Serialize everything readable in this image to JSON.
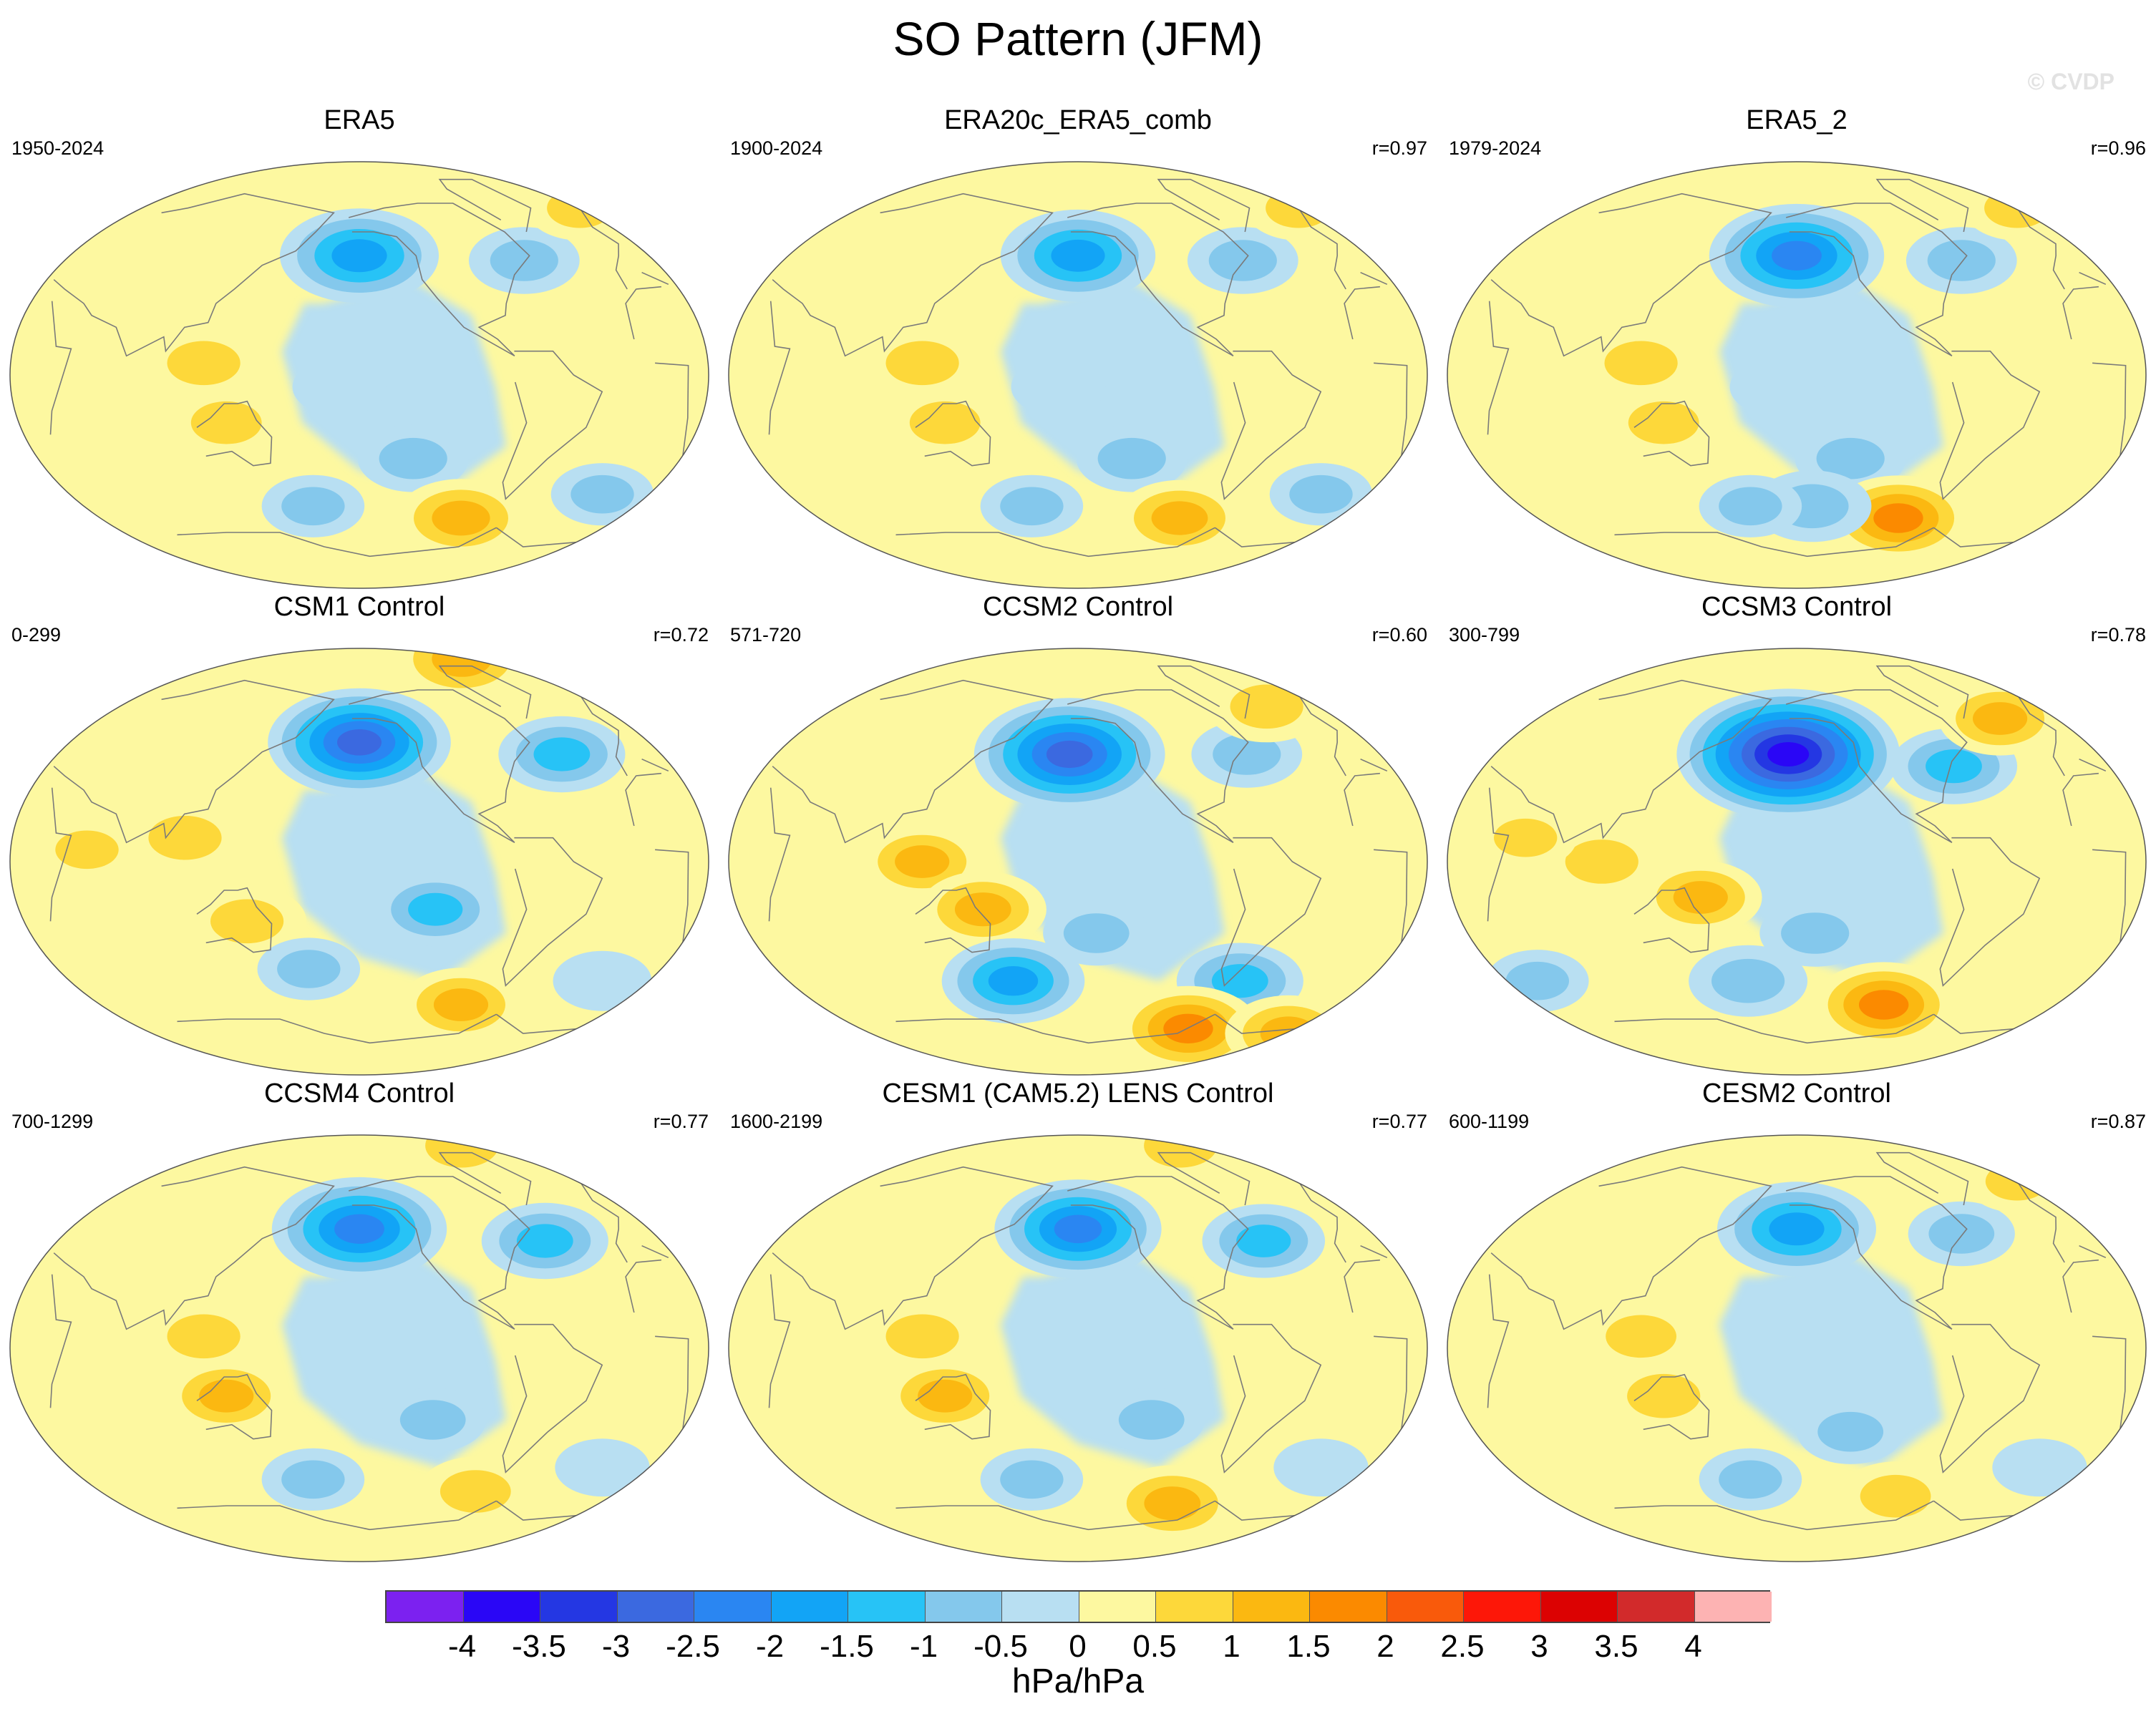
{
  "figure": {
    "title": "SO Pattern (JFM)",
    "credit": "© CVDP",
    "units": "hPa/hPa"
  },
  "colorbar": {
    "colors": [
      "#7c21f0",
      "#2a06f6",
      "#2437e3",
      "#3b69e0",
      "#2a86f2",
      "#12a4f6",
      "#27c3f6",
      "#84c8ec",
      "#b8dff2",
      "#fdf8a0",
      "#fdd83a",
      "#fbb811",
      "#fb8a00",
      "#f95a0b",
      "#fd1708",
      "#dc0202",
      "#d22a2b",
      "#fdb3b3"
    ],
    "labels": [
      "-4",
      "-3.5",
      "-3",
      "-2.5",
      "-2",
      "-1.5",
      "-1",
      "-0.5",
      "0",
      "0.5",
      "1",
      "1.5",
      "2",
      "2.5",
      "3",
      "3.5",
      "4"
    ]
  },
  "panels": [
    {
      "title": "ERA5",
      "years": "1950-2024",
      "corr": "",
      "features": [
        {
          "lon": -160,
          "lat": 50,
          "v": -2.0
        },
        {
          "lon": -60,
          "lat": 48,
          "v": -0.8
        },
        {
          "lon": 120,
          "lat": 5,
          "v": 1.0
        },
        {
          "lon": 130,
          "lat": -20,
          "v": 0.9
        },
        {
          "lon": -130,
          "lat": -35,
          "v": -0.8
        },
        {
          "lon": -90,
          "lat": -60,
          "v": 1.3
        },
        {
          "lon": 20,
          "lat": 70,
          "v": 0.7
        },
        {
          "lon": -10,
          "lat": -50,
          "v": -0.6
        },
        {
          "lon": 170,
          "lat": -55,
          "v": -0.6
        },
        {
          "lon": 40,
          "lat": 25,
          "v": 0.4
        },
        {
          "lon": -170,
          "lat": -5,
          "v": -0.4
        }
      ]
    },
    {
      "title": "ERA20c_ERA5_comb",
      "years": "1900-2024",
      "corr": "r=0.97",
      "features": [
        {
          "lon": -160,
          "lat": 50,
          "v": -1.9
        },
        {
          "lon": -60,
          "lat": 48,
          "v": -0.8
        },
        {
          "lon": 120,
          "lat": 5,
          "v": 1.0
        },
        {
          "lon": 130,
          "lat": -20,
          "v": 0.9
        },
        {
          "lon": -130,
          "lat": -35,
          "v": -0.8
        },
        {
          "lon": -90,
          "lat": -60,
          "v": 1.2
        },
        {
          "lon": 20,
          "lat": 70,
          "v": 0.7
        },
        {
          "lon": -10,
          "lat": -50,
          "v": -0.6
        },
        {
          "lon": 170,
          "lat": -55,
          "v": -0.6
        },
        {
          "lon": 40,
          "lat": 25,
          "v": 0.4
        },
        {
          "lon": -170,
          "lat": -5,
          "v": -0.4
        }
      ]
    },
    {
      "title": "ERA5_2",
      "years": "1979-2024",
      "corr": "r=0.96",
      "features": [
        {
          "lon": -160,
          "lat": 50,
          "v": -2.4
        },
        {
          "lon": -60,
          "lat": 48,
          "v": -0.8
        },
        {
          "lon": 120,
          "lat": 5,
          "v": 1.0
        },
        {
          "lon": 130,
          "lat": -20,
          "v": 0.9
        },
        {
          "lon": -130,
          "lat": -35,
          "v": -0.8
        },
        {
          "lon": -90,
          "lat": -60,
          "v": 1.6
        },
        {
          "lon": 20,
          "lat": 70,
          "v": 0.7
        },
        {
          "lon": -150,
          "lat": -55,
          "v": -1.0
        },
        {
          "lon": 170,
          "lat": -55,
          "v": -0.6
        },
        {
          "lon": 40,
          "lat": 25,
          "v": 0.4
        },
        {
          "lon": -170,
          "lat": -5,
          "v": -0.4
        }
      ]
    },
    {
      "title": "CSM1 Control",
      "years": "0-299",
      "corr": "r=0.72",
      "features": [
        {
          "lon": -160,
          "lat": 50,
          "v": -2.6
        },
        {
          "lon": -40,
          "lat": 45,
          "v": -1.2
        },
        {
          "lon": 110,
          "lat": 10,
          "v": 1.0
        },
        {
          "lon": 140,
          "lat": -25,
          "v": 1.0
        },
        {
          "lon": -120,
          "lat": -20,
          "v": -1.1
        },
        {
          "lon": -90,
          "lat": -60,
          "v": 1.1
        },
        {
          "lon": 0,
          "lat": 85,
          "v": 1.4
        },
        {
          "lon": 170,
          "lat": -45,
          "v": -0.6
        },
        {
          "lon": 60,
          "lat": 5,
          "v": 0.6
        },
        {
          "lon": -10,
          "lat": -50,
          "v": -0.5
        }
      ]
    },
    {
      "title": "CCSM2 Control",
      "years": "571-720",
      "corr": "r=0.60",
      "features": [
        {
          "lon": -165,
          "lat": 45,
          "v": -2.8
        },
        {
          "lon": -60,
          "lat": 45,
          "v": -0.8
        },
        {
          "lon": 120,
          "lat": 0,
          "v": 1.1
        },
        {
          "lon": 150,
          "lat": -20,
          "v": 1.2
        },
        {
          "lon": 160,
          "lat": -50,
          "v": -1.6
        },
        {
          "lon": -60,
          "lat": -50,
          "v": -1.2
        },
        {
          "lon": -70,
          "lat": -70,
          "v": 1.6
        },
        {
          "lon": 20,
          "lat": -72,
          "v": 1.2
        },
        {
          "lon": -20,
          "lat": 65,
          "v": 1.0
        },
        {
          "lon": -150,
          "lat": -30,
          "v": -0.7
        },
        {
          "lon": 60,
          "lat": 20,
          "v": 0.5
        }
      ]
    },
    {
      "title": "CCSM3 Control",
      "years": "300-799",
      "corr": "r=0.78",
      "features": [
        {
          "lon": -165,
          "lat": 45,
          "v": -3.6
        },
        {
          "lon": -70,
          "lat": 40,
          "v": -1.2
        },
        {
          "lon": 100,
          "lat": 0,
          "v": 1.0
        },
        {
          "lon": 150,
          "lat": -15,
          "v": 1.1
        },
        {
          "lon": -100,
          "lat": -60,
          "v": 1.6
        },
        {
          "lon": -20,
          "lat": 60,
          "v": 1.1
        },
        {
          "lon": 170,
          "lat": -50,
          "v": -1.0
        },
        {
          "lon": -150,
          "lat": -30,
          "v": -0.8
        },
        {
          "lon": 40,
          "lat": -50,
          "v": -0.6
        },
        {
          "lon": 60,
          "lat": 10,
          "v": 0.6
        }
      ]
    },
    {
      "title": "CCSM4 Control",
      "years": "700-1299",
      "corr": "r=0.77",
      "features": [
        {
          "lon": -160,
          "lat": 50,
          "v": -2.4
        },
        {
          "lon": -50,
          "lat": 45,
          "v": -1.2
        },
        {
          "lon": 120,
          "lat": 5,
          "v": 1.0
        },
        {
          "lon": 130,
          "lat": -20,
          "v": 1.1
        },
        {
          "lon": -120,
          "lat": -30,
          "v": -0.7
        },
        {
          "lon": -80,
          "lat": -60,
          "v": 0.9
        },
        {
          "lon": 0,
          "lat": 85,
          "v": 1.0
        },
        {
          "lon": 170,
          "lat": -55,
          "v": -0.6
        },
        {
          "lon": -10,
          "lat": -50,
          "v": -0.4
        }
      ]
    },
    {
      "title": "CESM1 (CAM5.2) LENS Control",
      "years": "1600-2199",
      "corr": "r=0.77",
      "features": [
        {
          "lon": -160,
          "lat": 50,
          "v": -2.2
        },
        {
          "lon": -50,
          "lat": 45,
          "v": -1.1
        },
        {
          "lon": 120,
          "lat": 5,
          "v": 1.0
        },
        {
          "lon": 130,
          "lat": -20,
          "v": 1.1
        },
        {
          "lon": -120,
          "lat": -30,
          "v": -0.7
        },
        {
          "lon": -90,
          "lat": -65,
          "v": 1.2
        },
        {
          "lon": 0,
          "lat": 85,
          "v": 1.0
        },
        {
          "lon": 170,
          "lat": -55,
          "v": -0.6
        },
        {
          "lon": -10,
          "lat": -50,
          "v": -0.4
        }
      ]
    },
    {
      "title": "CESM2 Control",
      "years": "600-1199",
      "corr": "r=0.87",
      "features": [
        {
          "lon": -160,
          "lat": 50,
          "v": -2.0
        },
        {
          "lon": -60,
          "lat": 48,
          "v": -0.7
        },
        {
          "lon": 120,
          "lat": 5,
          "v": 0.9
        },
        {
          "lon": 130,
          "lat": -20,
          "v": 1.0
        },
        {
          "lon": -130,
          "lat": -35,
          "v": -0.7
        },
        {
          "lon": -90,
          "lat": -62,
          "v": 0.9
        },
        {
          "lon": 20,
          "lat": 70,
          "v": 0.6
        },
        {
          "lon": 170,
          "lat": -55,
          "v": -0.6
        },
        {
          "lon": -10,
          "lat": -50,
          "v": -0.4
        }
      ]
    }
  ]
}
